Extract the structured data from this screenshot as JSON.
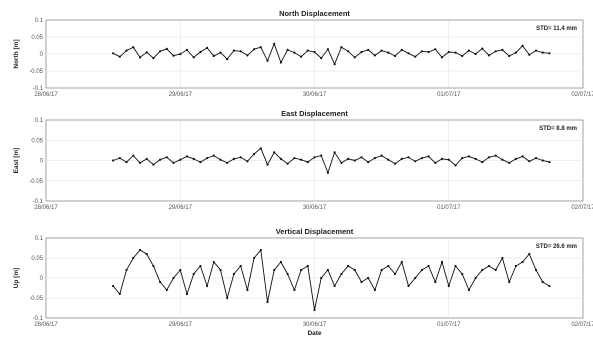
{
  "chart_data": [
    {
      "type": "scatter",
      "title": "North Displacement",
      "ylabel": "North [m]",
      "xlabel": "",
      "annotation": "STD= 11.4 mm",
      "x_ticks": [
        "28/06/17",
        "29/06/17",
        "30/06/17",
        "01/07/17",
        "02/07/17"
      ],
      "y_ticks": [
        "0.1",
        "0.05",
        "0",
        "-0.05",
        "-0.1"
      ],
      "xlim": [
        "2017-06-28",
        "2017-07-02"
      ],
      "ylim": [
        -0.1,
        0.1
      ],
      "grid": true,
      "series": [
        {
          "x": [
            "2017-06-28T12:00",
            "2017-06-28T13:12",
            "2017-06-28T14:24",
            "2017-06-28T15:36",
            "2017-06-28T16:48",
            "2017-06-28T18:00",
            "2017-06-28T19:12",
            "2017-06-28T20:24",
            "2017-06-28T21:36",
            "2017-06-28T22:48",
            "2017-06-29T00:00",
            "2017-06-29T01:12",
            "2017-06-29T02:24",
            "2017-06-29T03:36",
            "2017-06-29T04:48",
            "2017-06-29T06:00",
            "2017-06-29T07:12",
            "2017-06-29T08:24",
            "2017-06-29T09:36",
            "2017-06-29T10:48",
            "2017-06-29T12:00",
            "2017-06-29T13:12",
            "2017-06-29T14:24",
            "2017-06-29T15:36",
            "2017-06-29T16:48",
            "2017-06-29T18:00",
            "2017-06-29T19:12",
            "2017-06-29T20:24",
            "2017-06-29T21:36",
            "2017-06-29T22:48",
            "2017-06-30T00:00",
            "2017-06-30T01:12",
            "2017-06-30T02:24",
            "2017-06-30T03:36",
            "2017-06-30T04:48",
            "2017-06-30T06:00",
            "2017-06-30T07:12",
            "2017-06-30T08:24",
            "2017-06-30T09:36",
            "2017-06-30T10:48",
            "2017-06-30T12:00",
            "2017-06-30T13:12",
            "2017-06-30T14:24",
            "2017-06-30T15:36",
            "2017-06-30T16:48",
            "2017-06-30T18:00",
            "2017-06-30T19:12",
            "2017-06-30T20:24",
            "2017-06-30T21:36",
            "2017-06-30T22:48",
            "2017-07-01T00:00",
            "2017-07-01T01:12",
            "2017-07-01T02:24",
            "2017-07-01T03:36",
            "2017-07-01T04:48",
            "2017-07-01T06:00",
            "2017-07-01T07:12",
            "2017-07-01T08:24",
            "2017-07-01T09:36",
            "2017-07-01T10:48",
            "2017-07-01T12:00",
            "2017-07-01T13:12",
            "2017-07-01T14:24",
            "2017-07-01T15:36",
            "2017-07-01T16:48",
            "2017-07-01T18:00"
          ],
          "y": [
            0.002,
            -0.008,
            0.01,
            0.02,
            -0.01,
            0.005,
            -0.012,
            0.008,
            0.015,
            -0.005,
            0.0,
            0.012,
            -0.01,
            0.006,
            0.018,
            -0.006,
            0.004,
            -0.015,
            0.01,
            0.008,
            -0.004,
            0.014,
            0.02,
            -0.02,
            0.03,
            -0.025,
            0.012,
            0.004,
            -0.008,
            0.01,
            0.006,
            -0.012,
            0.014,
            -0.03,
            0.02,
            0.008,
            -0.01,
            0.006,
            0.012,
            -0.004,
            0.01,
            0.004,
            -0.006,
            0.012,
            0.002,
            -0.008,
            0.008,
            0.006,
            0.014,
            -0.01,
            0.006,
            0.004,
            -0.006,
            0.01,
            0.0,
            0.016,
            -0.004,
            0.008,
            0.012,
            -0.006,
            0.004,
            0.024,
            -0.002,
            0.01,
            0.004,
            0.002
          ]
        }
      ]
    },
    {
      "type": "scatter",
      "title": "East Displacement",
      "ylabel": "East [m]",
      "xlabel": "",
      "annotation": "STD= 8.8 mm",
      "x_ticks": [
        "28/06/17",
        "29/06/17",
        "30/06/17",
        "01/07/17",
        "02/07/17"
      ],
      "y_ticks": [
        "0.1",
        "0.05",
        "0",
        "-0.05",
        "-0.1"
      ],
      "xlim": [
        "2017-06-28",
        "2017-07-02"
      ],
      "ylim": [
        -0.1,
        0.1
      ],
      "grid": true,
      "series": [
        {
          "x": [
            "2017-06-28T12:00",
            "2017-06-28T13:12",
            "2017-06-28T14:24",
            "2017-06-28T15:36",
            "2017-06-28T16:48",
            "2017-06-28T18:00",
            "2017-06-28T19:12",
            "2017-06-28T20:24",
            "2017-06-28T21:36",
            "2017-06-28T22:48",
            "2017-06-29T00:00",
            "2017-06-29T01:12",
            "2017-06-29T02:24",
            "2017-06-29T03:36",
            "2017-06-29T04:48",
            "2017-06-29T06:00",
            "2017-06-29T07:12",
            "2017-06-29T08:24",
            "2017-06-29T09:36",
            "2017-06-29T10:48",
            "2017-06-29T12:00",
            "2017-06-29T13:12",
            "2017-06-29T14:24",
            "2017-06-29T15:36",
            "2017-06-29T16:48",
            "2017-06-29T18:00",
            "2017-06-29T19:12",
            "2017-06-29T20:24",
            "2017-06-29T21:36",
            "2017-06-29T22:48",
            "2017-06-30T00:00",
            "2017-06-30T01:12",
            "2017-06-30T02:24",
            "2017-06-30T03:36",
            "2017-06-30T04:48",
            "2017-06-30T06:00",
            "2017-06-30T07:12",
            "2017-06-30T08:24",
            "2017-06-30T09:36",
            "2017-06-30T10:48",
            "2017-06-30T12:00",
            "2017-06-30T13:12",
            "2017-06-30T14:24",
            "2017-06-30T15:36",
            "2017-06-30T16:48",
            "2017-06-30T18:00",
            "2017-06-30T19:12",
            "2017-06-30T20:24",
            "2017-06-30T21:36",
            "2017-06-30T22:48",
            "2017-07-01T00:00",
            "2017-07-01T01:12",
            "2017-07-01T02:24",
            "2017-07-01T03:36",
            "2017-07-01T04:48",
            "2017-07-01T06:00",
            "2017-07-01T07:12",
            "2017-07-01T08:24",
            "2017-07-01T09:36",
            "2017-07-01T10:48",
            "2017-07-01T12:00",
            "2017-07-01T13:12",
            "2017-07-01T14:24",
            "2017-07-01T15:36",
            "2017-07-01T16:48",
            "2017-07-01T18:00"
          ],
          "y": [
            0.0,
            0.006,
            -0.004,
            0.012,
            -0.006,
            0.004,
            -0.01,
            0.002,
            0.008,
            -0.006,
            0.002,
            0.01,
            0.004,
            -0.004,
            0.006,
            0.012,
            0.002,
            -0.006,
            0.004,
            0.008,
            -0.002,
            0.016,
            0.03,
            -0.01,
            0.02,
            0.004,
            -0.008,
            0.006,
            0.002,
            -0.004,
            0.008,
            0.012,
            -0.03,
            0.02,
            -0.006,
            0.004,
            0.0,
            0.008,
            -0.004,
            0.006,
            0.012,
            0.002,
            -0.008,
            0.004,
            0.008,
            -0.002,
            0.006,
            0.01,
            -0.006,
            0.004,
            0.002,
            -0.012,
            0.006,
            0.01,
            0.004,
            -0.004,
            0.008,
            0.012,
            0.002,
            -0.006,
            0.004,
            0.01,
            -0.002,
            0.006,
            0.0,
            -0.004
          ]
        }
      ]
    },
    {
      "type": "scatter",
      "title": "Vertical  Displacement",
      "ylabel": "Up [m]",
      "xlabel": "Date",
      "annotation": "STD= 26.6 mm",
      "x_ticks": [
        "28/06/17",
        "29/06/17",
        "30/06/17",
        "01/07/17",
        "02/07/17"
      ],
      "y_ticks": [
        "0.1",
        "0.05",
        "0",
        "-0.05",
        "-0.1"
      ],
      "xlim": [
        "2017-06-28",
        "2017-07-02"
      ],
      "ylim": [
        -0.1,
        0.1
      ],
      "grid": true,
      "series": [
        {
          "x": [
            "2017-06-28T12:00",
            "2017-06-28T13:12",
            "2017-06-28T14:24",
            "2017-06-28T15:36",
            "2017-06-28T16:48",
            "2017-06-28T18:00",
            "2017-06-28T19:12",
            "2017-06-28T20:24",
            "2017-06-28T21:36",
            "2017-06-28T22:48",
            "2017-06-29T00:00",
            "2017-06-29T01:12",
            "2017-06-29T02:24",
            "2017-06-29T03:36",
            "2017-06-29T04:48",
            "2017-06-29T06:00",
            "2017-06-29T07:12",
            "2017-06-29T08:24",
            "2017-06-29T09:36",
            "2017-06-29T10:48",
            "2017-06-29T12:00",
            "2017-06-29T13:12",
            "2017-06-29T14:24",
            "2017-06-29T15:36",
            "2017-06-29T16:48",
            "2017-06-29T18:00",
            "2017-06-29T19:12",
            "2017-06-29T20:24",
            "2017-06-29T21:36",
            "2017-06-29T22:48",
            "2017-06-30T00:00",
            "2017-06-30T01:12",
            "2017-06-30T02:24",
            "2017-06-30T03:36",
            "2017-06-30T04:48",
            "2017-06-30T06:00",
            "2017-06-30T07:12",
            "2017-06-30T08:24",
            "2017-06-30T09:36",
            "2017-06-30T10:48",
            "2017-06-30T12:00",
            "2017-06-30T13:12",
            "2017-06-30T14:24",
            "2017-06-30T15:36",
            "2017-06-30T16:48",
            "2017-06-30T18:00",
            "2017-06-30T19:12",
            "2017-06-30T20:24",
            "2017-06-30T21:36",
            "2017-06-30T22:48",
            "2017-07-01T00:00",
            "2017-07-01T01:12",
            "2017-07-01T02:24",
            "2017-07-01T03:36",
            "2017-07-01T04:48",
            "2017-07-01T06:00",
            "2017-07-01T07:12",
            "2017-07-01T08:24",
            "2017-07-01T09:36",
            "2017-07-01T10:48",
            "2017-07-01T12:00",
            "2017-07-01T13:12",
            "2017-07-01T14:24",
            "2017-07-01T15:36",
            "2017-07-01T16:48",
            "2017-07-01T18:00"
          ],
          "y": [
            -0.02,
            -0.04,
            0.02,
            0.05,
            0.07,
            0.06,
            0.03,
            -0.01,
            -0.03,
            0.0,
            0.02,
            -0.04,
            0.01,
            0.03,
            -0.02,
            0.04,
            0.02,
            -0.05,
            0.01,
            0.03,
            -0.03,
            0.05,
            0.07,
            -0.06,
            0.02,
            0.04,
            0.01,
            -0.03,
            0.02,
            0.03,
            -0.08,
            0.0,
            0.02,
            -0.02,
            0.01,
            0.03,
            0.02,
            -0.01,
            0.0,
            -0.03,
            0.02,
            0.03,
            0.01,
            0.04,
            -0.02,
            0.0,
            0.02,
            0.03,
            -0.01,
            0.04,
            -0.02,
            0.03,
            0.01,
            -0.03,
            0.0,
            0.02,
            0.03,
            0.02,
            0.05,
            -0.01,
            0.03,
            0.04,
            0.06,
            0.02,
            -0.01,
            -0.02
          ]
        }
      ]
    }
  ]
}
